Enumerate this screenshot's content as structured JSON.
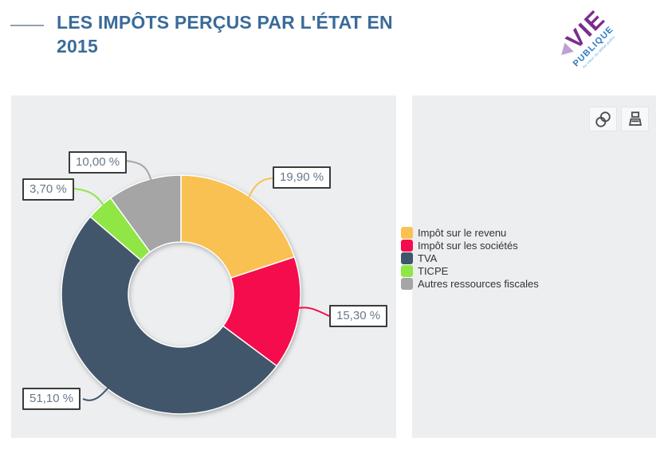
{
  "header": {
    "title": "LES IMPÔTS PERÇUS PAR L'ÉTAT EN 2015",
    "logo": {
      "word1": "VIE",
      "word2": "PUBLIQUE",
      "tagline": "Au cœur du débat public"
    }
  },
  "toolbar": {
    "icons": {
      "share": "interlocked-circles",
      "print": "printer"
    }
  },
  "chart_data": {
    "type": "pie",
    "subtype": "donut",
    "title": "Les impôts perçus par l'État en 2015",
    "unit": "%",
    "start_angle_deg": 0,
    "direction": "clockwise",
    "legend_position": "right",
    "series": [
      {
        "name": "Impôt sur le revenu",
        "value": 19.9,
        "label": "19,90 %",
        "color": "#F9C152"
      },
      {
        "name": "Impôt sur les sociétés",
        "value": 15.3,
        "label": "15,30 %",
        "color": "#F50C4D"
      },
      {
        "name": "TVA",
        "value": 51.1,
        "label": "51,10 %",
        "color": "#42566B"
      },
      {
        "name": "TICPE",
        "value": 3.7,
        "label": "3,70 %",
        "color": "#8FE645"
      },
      {
        "name": "Autres ressources fiscales",
        "value": 10.0,
        "label": "10,00 %",
        "color": "#A5A5A5"
      }
    ]
  },
  "style": {
    "panel_bg": "#ECEEF0",
    "title_color": "#3A6B99",
    "label_text_color": "#68798A"
  }
}
